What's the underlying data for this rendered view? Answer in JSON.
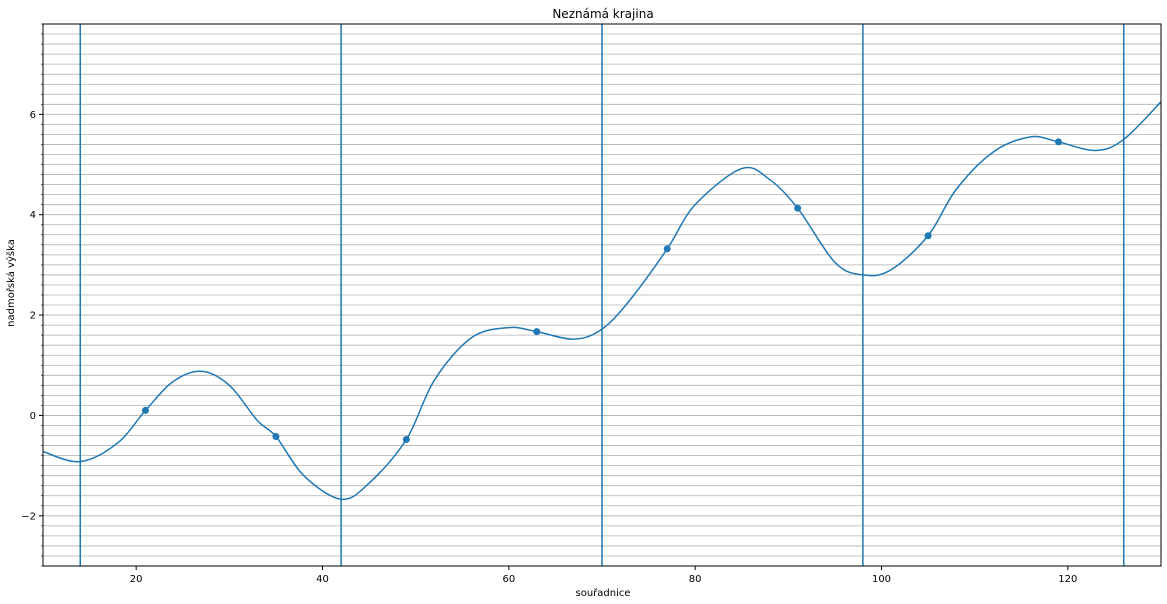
{
  "chart_data": {
    "type": "line",
    "title": "Neznámá krajina",
    "xlabel": "souřadnice",
    "ylabel": "nadmořská výška",
    "xlim": [
      10,
      130
    ],
    "ylim": [
      -3,
      7.8
    ],
    "xticks": [
      20,
      40,
      60,
      80,
      100,
      120
    ],
    "xtick_labels": [
      "20",
      "40",
      "60",
      "80",
      "100",
      "120"
    ],
    "yticks": [
      -2,
      0,
      2,
      4,
      6
    ],
    "ytick_labels": [
      "−2",
      "0",
      "2",
      "4",
      "6"
    ],
    "grid": "horizontal-minor",
    "line_color": "#1f77b4",
    "grid_color": "#b0b0b0",
    "series": [
      {
        "x": [
          10,
          14,
          18,
          21,
          24,
          27,
          30,
          33,
          35,
          38,
          42,
          45,
          49,
          52,
          56,
          60,
          63,
          67,
          70,
          73,
          77,
          80,
          85,
          88,
          91,
          95,
          98,
          101,
          105,
          108,
          112,
          116,
          119,
          123,
          126,
          130
        ],
        "y": [
          -0.72,
          -0.92,
          -0.55,
          0.1,
          0.68,
          0.88,
          0.6,
          -0.1,
          -0.42,
          -1.2,
          -1.67,
          -1.35,
          -0.48,
          0.7,
          1.55,
          1.75,
          1.67,
          1.52,
          1.72,
          2.3,
          3.32,
          4.2,
          4.92,
          4.7,
          4.13,
          3.05,
          2.8,
          2.9,
          3.58,
          4.5,
          5.25,
          5.55,
          5.45,
          5.28,
          5.5,
          6.25
        ]
      },
      {
        "x": [
          21,
          35,
          49,
          63,
          77,
          91,
          105,
          119
        ],
        "y": [
          0.1,
          -0.42,
          -0.48,
          1.67,
          3.32,
          4.13,
          3.58,
          5.45
        ]
      }
    ],
    "vertical_lines": [
      14,
      42,
      70,
      98,
      126
    ]
  }
}
